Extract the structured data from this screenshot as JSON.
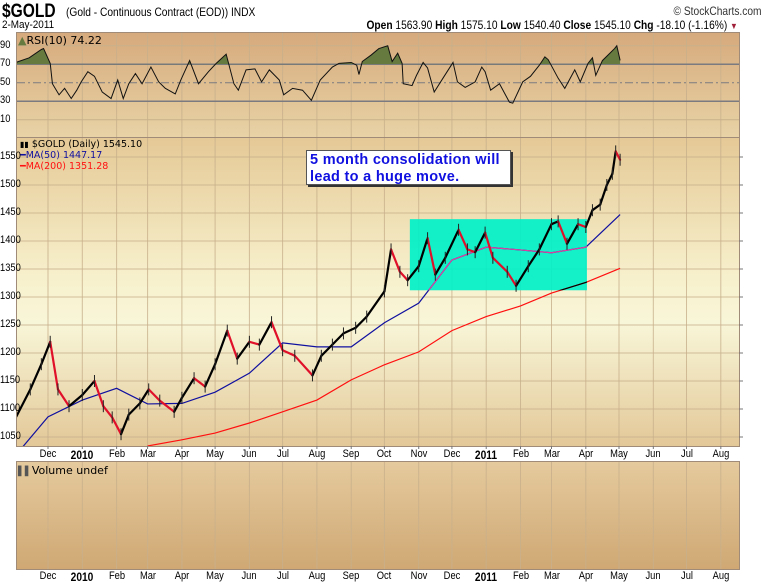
{
  "header": {
    "symbol": "$GOLD",
    "description": "(Gold - Continuous Contract (EOD))",
    "exchange": "INDX",
    "copyright": "© StockCharts.com",
    "date": "2-May-2011",
    "open_label": "Open",
    "open": "1563.90",
    "high_label": "High",
    "high": "1575.10",
    "low_label": "Low",
    "low": "1540.40",
    "close_label": "Close",
    "close": "1545.10",
    "chg_label": "Chg",
    "chg": "-18.10 (-1.16%)",
    "chg_arrow": "▼"
  },
  "legend": {
    "rsi": "RSI(10) 74.22",
    "price": "$GOLD (Daily) 1545.10",
    "ma50": "MA(50) 1447.17",
    "ma200": "MA(200) 1351.28",
    "volume": "Volume undef"
  },
  "annotation": {
    "text_line1": "5 month consolidation will",
    "text_line2": "lead to a huge move."
  },
  "colors": {
    "up": "#000000",
    "down": "#e0102a",
    "ma50": "#1010a0",
    "ma200": "#ff1010",
    "rsi_fill": "#667a40",
    "box": "#00f0c8",
    "annotation_text": "#1010e0"
  },
  "chart_data": {
    "type": "line",
    "x_axis_labels": [
      "Dec",
      "2010",
      "Feb",
      "Mar",
      "Apr",
      "May",
      "Jun",
      "Jul",
      "Aug",
      "Sep",
      "Oct",
      "Nov",
      "Dec",
      "2011",
      "Feb",
      "Mar",
      "Apr",
      "May",
      "Jun",
      "Jul",
      "Aug"
    ],
    "x_axis_months": [
      "2009-12-01",
      "2010-01-01",
      "2010-02-01",
      "2010-03-01",
      "2010-04-01",
      "2010-05-01",
      "2010-06-01",
      "2010-07-01",
      "2010-08-01",
      "2010-09-01",
      "2010-10-01",
      "2010-11-01",
      "2010-12-01",
      "2011-01-01",
      "2011-02-01",
      "2011-03-01",
      "2011-04-01",
      "2011-05-01",
      "2011-06-01",
      "2011-07-01",
      "2011-08-01"
    ],
    "x_range": [
      "2009-11-01",
      "2011-08-31"
    ],
    "rsi": {
      "ylim": [
        0,
        100
      ],
      "ticks": [
        90,
        70,
        50,
        30,
        10
      ],
      "overbought": 70,
      "oversold": 30,
      "midline": 50,
      "points": [
        [
          "2009-11-02",
          72
        ],
        [
          "2009-11-14",
          77
        ],
        [
          "2009-11-25",
          86
        ],
        [
          "2009-11-27",
          87
        ],
        [
          "2009-12-03",
          71
        ],
        [
          "2009-12-05",
          49
        ],
        [
          "2009-12-11",
          37
        ],
        [
          "2009-12-16",
          44
        ],
        [
          "2009-12-22",
          33
        ],
        [
          "2009-12-27",
          42
        ],
        [
          "2009-12-31",
          51
        ],
        [
          "2010-01-06",
          62
        ],
        [
          "2010-01-12",
          57
        ],
        [
          "2010-01-19",
          40
        ],
        [
          "2010-01-27",
          33
        ],
        [
          "2010-02-02",
          53
        ],
        [
          "2010-02-07",
          33
        ],
        [
          "2010-02-12",
          49
        ],
        [
          "2010-02-18",
          60
        ],
        [
          "2010-02-24",
          49
        ],
        [
          "2010-03-04",
          67
        ],
        [
          "2010-03-11",
          51
        ],
        [
          "2010-03-17",
          44
        ],
        [
          "2010-03-26",
          38
        ],
        [
          "2010-03-31",
          53
        ],
        [
          "2010-04-08",
          74
        ],
        [
          "2010-04-16",
          49
        ],
        [
          "2010-04-25",
          62
        ],
        [
          "2010-05-02",
          71
        ],
        [
          "2010-05-11",
          81
        ],
        [
          "2010-05-18",
          49
        ],
        [
          "2010-05-22",
          42
        ],
        [
          "2010-05-29",
          64
        ],
        [
          "2010-06-06",
          65
        ],
        [
          "2010-06-12",
          51
        ],
        [
          "2010-06-19",
          64
        ],
        [
          "2010-06-28",
          53
        ],
        [
          "2010-07-02",
          37
        ],
        [
          "2010-07-10",
          44
        ],
        [
          "2010-07-19",
          42
        ],
        [
          "2010-07-27",
          31
        ],
        [
          "2010-08-04",
          53
        ],
        [
          "2010-08-15",
          67
        ],
        [
          "2010-08-21",
          71
        ],
        [
          "2010-09-01",
          72
        ],
        [
          "2010-09-06",
          69
        ],
        [
          "2010-09-08",
          59
        ],
        [
          "2010-09-11",
          73
        ],
        [
          "2010-09-19",
          80
        ],
        [
          "2010-09-26",
          87
        ],
        [
          "2010-10-04",
          90
        ],
        [
          "2010-10-08",
          73
        ],
        [
          "2010-10-13",
          82
        ],
        [
          "2010-10-17",
          71
        ],
        [
          "2010-10-18",
          49
        ],
        [
          "2010-10-26",
          47
        ],
        [
          "2010-10-30",
          58
        ],
        [
          "2010-11-05",
          72
        ],
        [
          "2010-11-09",
          66
        ],
        [
          "2010-11-15",
          40
        ],
        [
          "2010-11-24",
          57
        ],
        [
          "2010-12-02",
          72
        ],
        [
          "2010-12-06",
          51
        ],
        [
          "2010-12-13",
          45
        ],
        [
          "2010-12-22",
          51
        ],
        [
          "2010-12-28",
          67
        ],
        [
          "2010-12-31",
          62
        ],
        [
          "2011-01-05",
          42
        ],
        [
          "2011-01-13",
          49
        ],
        [
          "2011-01-22",
          29
        ],
        [
          "2011-01-25",
          28
        ],
        [
          "2011-02-03",
          51
        ],
        [
          "2011-02-10",
          57
        ],
        [
          "2011-02-18",
          69
        ],
        [
          "2011-02-23",
          78
        ],
        [
          "2011-02-26",
          75
        ],
        [
          "2011-03-07",
          55
        ],
        [
          "2011-03-13",
          44
        ],
        [
          "2011-03-22",
          64
        ],
        [
          "2011-03-27",
          51
        ],
        [
          "2011-04-03",
          71
        ],
        [
          "2011-04-07",
          77
        ],
        [
          "2011-04-10",
          58
        ],
        [
          "2011-04-16",
          74
        ],
        [
          "2011-04-27",
          87
        ],
        [
          "2011-04-29",
          90
        ],
        [
          "2011-05-02",
          74.22
        ]
      ]
    },
    "price": {
      "ylim": [
        1030,
        1580
      ],
      "ticks": [
        1550,
        1500,
        1450,
        1400,
        1350,
        1300,
        1250,
        1200,
        1150,
        1100,
        1050
      ],
      "close": [
        [
          "2009-11-02",
          1085
        ],
        [
          "2009-11-15",
          1135
        ],
        [
          "2009-11-25",
          1180
        ],
        [
          "2009-12-03",
          1220
        ],
        [
          "2009-12-10",
          1135
        ],
        [
          "2009-12-20",
          1105
        ],
        [
          "2010-01-01",
          1125
        ],
        [
          "2010-01-12",
          1150
        ],
        [
          "2010-01-20",
          1105
        ],
        [
          "2010-01-28",
          1085
        ],
        [
          "2010-02-05",
          1055
        ],
        [
          "2010-02-12",
          1090
        ],
        [
          "2010-02-22",
          1110
        ],
        [
          "2010-03-02",
          1135
        ],
        [
          "2010-03-12",
          1115
        ],
        [
          "2010-03-25",
          1095
        ],
        [
          "2010-04-01",
          1120
        ],
        [
          "2010-04-12",
          1155
        ],
        [
          "2010-04-22",
          1140
        ],
        [
          "2010-05-01",
          1180
        ],
        [
          "2010-05-12",
          1240
        ],
        [
          "2010-05-21",
          1190
        ],
        [
          "2010-06-01",
          1220
        ],
        [
          "2010-06-10",
          1215
        ],
        [
          "2010-06-21",
          1255
        ],
        [
          "2010-07-01",
          1205
        ],
        [
          "2010-07-12",
          1195
        ],
        [
          "2010-07-28",
          1160
        ],
        [
          "2010-08-05",
          1195
        ],
        [
          "2010-08-15",
          1215
        ],
        [
          "2010-08-25",
          1235
        ],
        [
          "2010-09-05",
          1245
        ],
        [
          "2010-09-15",
          1265
        ],
        [
          "2010-10-01",
          1310
        ],
        [
          "2010-10-07",
          1385
        ],
        [
          "2010-10-15",
          1345
        ],
        [
          "2010-10-22",
          1330
        ],
        [
          "2010-11-01",
          1355
        ],
        [
          "2010-11-09",
          1405
        ],
        [
          "2010-11-16",
          1340
        ],
        [
          "2010-11-25",
          1370
        ],
        [
          "2010-12-07",
          1420
        ],
        [
          "2010-12-15",
          1385
        ],
        [
          "2010-12-22",
          1380
        ],
        [
          "2010-12-31",
          1415
        ],
        [
          "2011-01-07",
          1370
        ],
        [
          "2011-01-20",
          1345
        ],
        [
          "2011-01-28",
          1320
        ],
        [
          "2011-02-08",
          1355
        ],
        [
          "2011-02-18",
          1385
        ],
        [
          "2011-03-01",
          1430
        ],
        [
          "2011-03-07",
          1435
        ],
        [
          "2011-03-15",
          1395
        ],
        [
          "2011-03-25",
          1430
        ],
        [
          "2011-04-01",
          1425
        ],
        [
          "2011-04-07",
          1455
        ],
        [
          "2011-04-14",
          1465
        ],
        [
          "2011-04-20",
          1500
        ],
        [
          "2011-04-25",
          1520
        ],
        [
          "2011-04-28",
          1560
        ],
        [
          "2011-05-02",
          1545.1
        ]
      ],
      "ma50": [
        [
          "2009-11-08",
          1032
        ],
        [
          "2009-12-01",
          1086
        ],
        [
          "2010-01-01",
          1116
        ],
        [
          "2010-02-01",
          1137
        ],
        [
          "2010-03-01",
          1109
        ],
        [
          "2010-04-01",
          1110
        ],
        [
          "2010-05-01",
          1130
        ],
        [
          "2010-06-01",
          1164
        ],
        [
          "2010-07-01",
          1218
        ],
        [
          "2010-08-01",
          1211
        ],
        [
          "2010-09-01",
          1211
        ],
        [
          "2010-10-01",
          1254
        ],
        [
          "2010-11-01",
          1289
        ],
        [
          "2010-12-01",
          1366
        ],
        [
          "2011-01-01",
          1389
        ],
        [
          "2011-02-01",
          1384
        ],
        [
          "2011-03-01",
          1379
        ],
        [
          "2011-04-01",
          1389
        ],
        [
          "2011-05-02",
          1447.17
        ]
      ],
      "ma200": [
        [
          "2010-03-01",
          1034
        ],
        [
          "2010-04-01",
          1045
        ],
        [
          "2010-05-01",
          1057
        ],
        [
          "2010-06-01",
          1075
        ],
        [
          "2010-07-01",
          1095
        ],
        [
          "2010-08-01",
          1116
        ],
        [
          "2010-09-01",
          1152
        ],
        [
          "2010-10-01",
          1179
        ],
        [
          "2010-11-01",
          1202
        ],
        [
          "2010-12-01",
          1240
        ],
        [
          "2011-01-01",
          1265
        ],
        [
          "2011-02-01",
          1284
        ],
        [
          "2011-03-01",
          1307
        ],
        [
          "2011-04-01",
          1326
        ],
        [
          "2011-05-02",
          1351.28
        ]
      ],
      "highlight_box": {
        "from": "2010-10-24",
        "to": "2011-04-02",
        "low": 1312,
        "high": 1439
      }
    },
    "volume": {
      "values": []
    }
  }
}
